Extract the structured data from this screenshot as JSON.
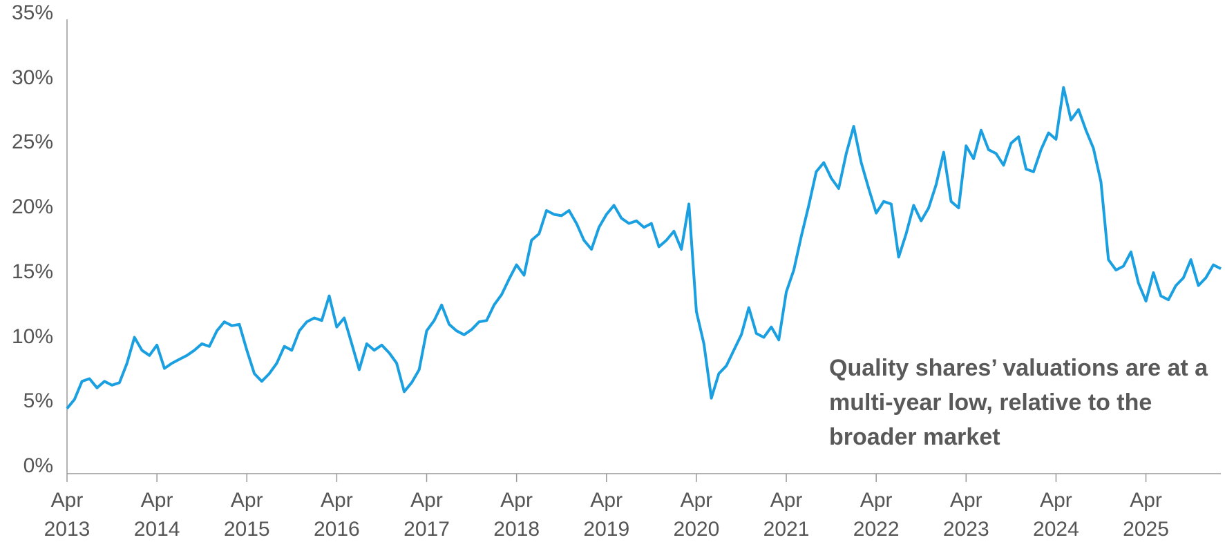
{
  "chart_data": {
    "type": "line",
    "annotation": "Quality shares’ valuations are at a multi-year low, relative to the broader market",
    "x": [
      "2013-04",
      "2013-05",
      "2013-06",
      "2013-07",
      "2013-08",
      "2013-09",
      "2013-10",
      "2013-11",
      "2013-12",
      "2014-01",
      "2014-02",
      "2014-03",
      "2014-04",
      "2014-05",
      "2014-06",
      "2014-07",
      "2014-08",
      "2014-09",
      "2014-10",
      "2014-11",
      "2014-12",
      "2015-01",
      "2015-02",
      "2015-03",
      "2015-04",
      "2015-05",
      "2015-06",
      "2015-07",
      "2015-08",
      "2015-09",
      "2015-10",
      "2015-11",
      "2015-12",
      "2016-01",
      "2016-02",
      "2016-03",
      "2016-04",
      "2016-05",
      "2016-06",
      "2016-07",
      "2016-08",
      "2016-09",
      "2016-10",
      "2016-11",
      "2016-12",
      "2017-01",
      "2017-02",
      "2017-03",
      "2017-04",
      "2017-05",
      "2017-06",
      "2017-07",
      "2017-08",
      "2017-09",
      "2017-10",
      "2017-11",
      "2017-12",
      "2018-01",
      "2018-02",
      "2018-03",
      "2018-04",
      "2018-05",
      "2018-06",
      "2018-07",
      "2018-08",
      "2018-09",
      "2018-10",
      "2018-11",
      "2018-12",
      "2019-01",
      "2019-02",
      "2019-03",
      "2019-04",
      "2019-05",
      "2019-06",
      "2019-07",
      "2019-08",
      "2019-09",
      "2019-10",
      "2019-11",
      "2019-12",
      "2020-01",
      "2020-02",
      "2020-03",
      "2020-04",
      "2020-05",
      "2020-06",
      "2020-07",
      "2020-08",
      "2020-09",
      "2020-10",
      "2020-11",
      "2020-12",
      "2021-01",
      "2021-02",
      "2021-03",
      "2021-04",
      "2021-05",
      "2021-06",
      "2021-07",
      "2021-08",
      "2021-09",
      "2021-10",
      "2021-11",
      "2021-12",
      "2022-01",
      "2022-02",
      "2022-03",
      "2022-04",
      "2022-05",
      "2022-06",
      "2022-07",
      "2022-08",
      "2022-09",
      "2022-10",
      "2022-11",
      "2022-12",
      "2023-01",
      "2023-02",
      "2023-03",
      "2023-04",
      "2023-05",
      "2023-06",
      "2023-07",
      "2023-08",
      "2023-09",
      "2023-10",
      "2023-11",
      "2023-12",
      "2024-01",
      "2024-02",
      "2024-03",
      "2024-04",
      "2024-05",
      "2024-06",
      "2024-07",
      "2024-08",
      "2024-09",
      "2024-10",
      "2024-11",
      "2024-12",
      "2025-01",
      "2025-02",
      "2025-03",
      "2025-04",
      "2025-05",
      "2025-06",
      "2025-07",
      "2025-08",
      "2025-09",
      "2025-10",
      "2025-11",
      "2025-12",
      "2026-01",
      "2026-02"
    ],
    "series": [
      {
        "color": "#1a9fe0",
        "values": [
          4.5,
          5.2,
          6.6,
          6.8,
          6.1,
          6.6,
          6.3,
          6.5,
          8.0,
          10.0,
          9.0,
          8.6,
          9.4,
          7.6,
          8.0,
          8.3,
          8.6,
          9.0,
          9.5,
          9.3,
          10.5,
          11.2,
          10.9,
          11.0,
          9.0,
          7.2,
          6.6,
          7.2,
          8.0,
          9.3,
          9.0,
          10.5,
          11.2,
          11.5,
          11.3,
          13.2,
          10.8,
          11.5,
          9.5,
          7.5,
          9.5,
          9.0,
          9.4,
          8.8,
          8.0,
          5.8,
          6.5,
          7.5,
          10.5,
          11.3,
          12.5,
          11.0,
          10.5,
          10.2,
          10.6,
          11.2,
          11.3,
          12.5,
          13.3,
          14.5,
          15.6,
          14.8,
          17.5,
          18.0,
          19.8,
          19.5,
          19.4,
          19.8,
          18.8,
          17.5,
          16.8,
          18.5,
          19.5,
          20.2,
          19.2,
          18.8,
          19.0,
          18.5,
          18.8,
          17.0,
          17.5,
          18.2,
          16.8,
          20.3,
          12.0,
          9.5,
          5.3,
          7.2,
          7.8,
          9.0,
          10.2,
          12.3,
          10.3,
          10.0,
          10.8,
          9.8,
          13.5,
          15.2,
          17.8,
          20.2,
          22.8,
          23.5,
          22.3,
          21.5,
          24.2,
          26.3,
          23.5,
          21.5,
          19.6,
          20.5,
          20.3,
          16.2,
          18.0,
          20.2,
          19.0,
          20.0,
          21.8,
          24.3,
          20.5,
          20.0,
          24.8,
          23.8,
          26.0,
          24.5,
          24.2,
          23.3,
          25.0,
          25.5,
          23.0,
          22.8,
          24.5,
          25.8,
          25.3,
          29.3,
          26.8,
          27.6,
          26.0,
          24.6,
          22.0,
          16.0,
          15.2,
          15.5,
          16.6,
          14.2,
          12.8,
          15.0,
          13.2,
          12.9,
          14.0,
          14.6,
          16.0,
          14.0,
          14.6,
          15.6,
          15.3
        ]
      }
    ],
    "xlim": [
      "2013-04",
      "2026-02"
    ],
    "xticks": [
      {
        "value": "2013-04",
        "label": "Apr 2013"
      },
      {
        "value": "2014-04",
        "label": "Apr 2014"
      },
      {
        "value": "2015-04",
        "label": "Apr 2015"
      },
      {
        "value": "2016-04",
        "label": "Apr 2016"
      },
      {
        "value": "2017-04",
        "label": "Apr 2017"
      },
      {
        "value": "2018-04",
        "label": "Apr 2018"
      },
      {
        "value": "2019-04",
        "label": "Apr 2019"
      },
      {
        "value": "2020-04",
        "label": "Apr 2020"
      },
      {
        "value": "2021-04",
        "label": "Apr 2021"
      },
      {
        "value": "2022-04",
        "label": "Apr 2022"
      },
      {
        "value": "2023-04",
        "label": "Apr 2023"
      },
      {
        "value": "2024-04",
        "label": "Apr 2024"
      },
      {
        "value": "2025-04",
        "label": "Apr 2025"
      }
    ],
    "ylim": [
      0,
      35
    ],
    "yticks": [
      {
        "value": 0,
        "label": "0%"
      },
      {
        "value": 5,
        "label": "5%"
      },
      {
        "value": 10,
        "label": "10%"
      },
      {
        "value": 15,
        "label": "15%"
      },
      {
        "value": 20,
        "label": "20%"
      },
      {
        "value": 25,
        "label": "25%"
      },
      {
        "value": 30,
        "label": "30%"
      },
      {
        "value": 35,
        "label": "35%"
      }
    ]
  }
}
